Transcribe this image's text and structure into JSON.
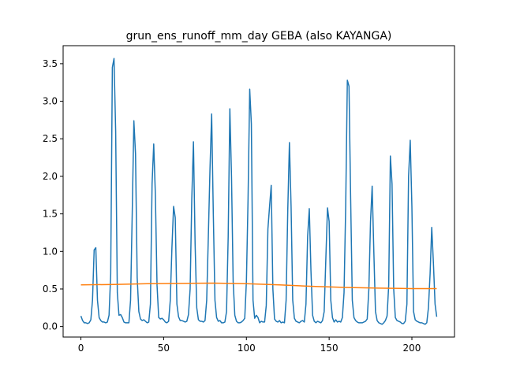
{
  "chart_data": {
    "type": "line",
    "title": "grun_ens_runoff_mm_day GEBA (also KAYANGA)",
    "xlabel": "",
    "ylabel": "",
    "xlim": [
      -10.75,
      225.75
    ],
    "ylim": [
      -0.14,
      3.74
    ],
    "xticks": [
      0,
      50,
      100,
      150,
      200
    ],
    "xtick_labels": [
      "0",
      "50",
      "100",
      "150",
      "200"
    ],
    "yticks": [
      0.0,
      0.5,
      1.0,
      1.5,
      2.0,
      2.5,
      3.0,
      3.5
    ],
    "ytick_labels": [
      "0.0",
      "0.5",
      "1.0",
      "1.5",
      "2.0",
      "2.5",
      "3.0",
      "3.5"
    ],
    "grid": false,
    "legend": "none",
    "series": [
      {
        "color": "#1f77b4",
        "x_start": 0,
        "values": [
          0.14,
          0.08,
          0.05,
          0.05,
          0.04,
          0.05,
          0.09,
          0.35,
          1.02,
          1.05,
          0.35,
          0.12,
          0.08,
          0.06,
          0.06,
          0.05,
          0.06,
          0.15,
          0.7,
          3.45,
          3.57,
          2.6,
          0.45,
          0.15,
          0.16,
          0.12,
          0.06,
          0.05,
          0.05,
          0.05,
          0.35,
          1.5,
          2.74,
          2.3,
          0.65,
          0.2,
          0.1,
          0.08,
          0.09,
          0.07,
          0.05,
          0.06,
          0.3,
          1.9,
          2.43,
          1.75,
          0.55,
          0.12,
          0.1,
          0.11,
          0.09,
          0.06,
          0.05,
          0.07,
          0.35,
          1.05,
          1.6,
          1.45,
          0.3,
          0.13,
          0.08,
          0.08,
          0.07,
          0.06,
          0.07,
          0.16,
          0.5,
          1.7,
          2.46,
          1.1,
          0.25,
          0.09,
          0.07,
          0.07,
          0.06,
          0.08,
          0.35,
          1.2,
          2.1,
          2.83,
          1.5,
          0.35,
          0.12,
          0.07,
          0.08,
          0.05,
          0.05,
          0.06,
          0.2,
          1.2,
          2.9,
          2.0,
          0.6,
          0.15,
          0.07,
          0.05,
          0.05,
          0.06,
          0.08,
          0.11,
          0.6,
          1.7,
          3.16,
          2.7,
          0.35,
          0.11,
          0.15,
          0.12,
          0.05,
          0.07,
          0.06,
          0.06,
          0.28,
          1.3,
          1.6,
          1.88,
          0.5,
          0.1,
          0.07,
          0.06,
          0.08,
          0.05,
          0.06,
          0.05,
          0.35,
          1.55,
          2.45,
          1.6,
          0.35,
          0.11,
          0.07,
          0.06,
          0.05,
          0.07,
          0.08,
          0.06,
          0.3,
          1.2,
          1.57,
          0.75,
          0.15,
          0.07,
          0.05,
          0.07,
          0.06,
          0.05,
          0.08,
          0.2,
          0.9,
          1.58,
          1.4,
          0.35,
          0.12,
          0.06,
          0.09,
          0.06,
          0.07,
          0.06,
          0.12,
          0.45,
          1.6,
          3.28,
          3.2,
          1.7,
          0.35,
          0.12,
          0.08,
          0.06,
          0.05,
          0.05,
          0.05,
          0.06,
          0.07,
          0.1,
          0.5,
          1.4,
          1.87,
          1.0,
          0.2,
          0.08,
          0.05,
          0.04,
          0.03,
          0.05,
          0.08,
          0.14,
          0.55,
          2.27,
          1.9,
          0.5,
          0.12,
          0.08,
          0.07,
          0.06,
          0.04,
          0.04,
          0.07,
          0.3,
          2.0,
          2.48,
          1.6,
          0.2,
          0.09,
          0.07,
          0.06,
          0.05,
          0.05,
          0.04,
          0.03,
          0.05,
          0.25,
          0.7,
          1.32,
          0.85,
          0.3,
          0.13
        ]
      },
      {
        "color": "#ff7f0e",
        "x": [
          0,
          20,
          40,
          60,
          80,
          100,
          120,
          140,
          160,
          180,
          200,
          215
        ],
        "values": [
          0.555,
          0.56,
          0.57,
          0.575,
          0.578,
          0.57,
          0.555,
          0.535,
          0.52,
          0.512,
          0.505,
          0.505
        ]
      }
    ]
  }
}
